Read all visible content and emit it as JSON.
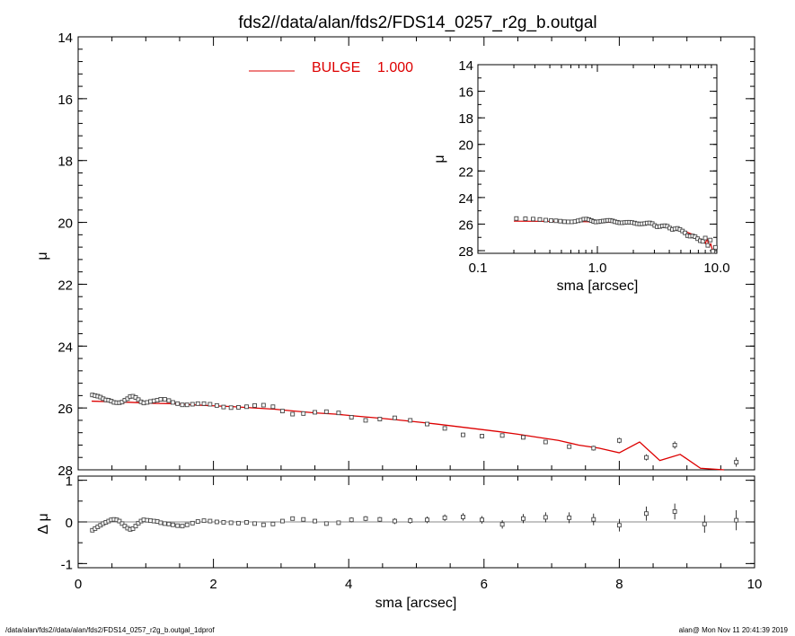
{
  "chart_data": [
    {
      "name": "main-profile",
      "type": "line",
      "title": "fds2//data/alan/fds2/FDS14_0257_r2g_b.outgal",
      "ylabel": "μ",
      "xlim": [
        0,
        10
      ],
      "ylim": [
        28,
        14
      ],
      "yticks": [
        "14",
        "16",
        "18",
        "20",
        "22",
        "24",
        "26",
        "28"
      ],
      "legend": {
        "label": "BULGE",
        "value": "1.000",
        "color": "#dd0000",
        "placement": "top-left"
      },
      "observed": {
        "sma": [
          0.21,
          0.25,
          0.29,
          0.33,
          0.37,
          0.41,
          0.45,
          0.49,
          0.53,
          0.57,
          0.61,
          0.65,
          0.69,
          0.73,
          0.77,
          0.81,
          0.85,
          0.89,
          0.93,
          0.97,
          1.02,
          1.07,
          1.12,
          1.17,
          1.22,
          1.28,
          1.34,
          1.4,
          1.47,
          1.54,
          1.61,
          1.69,
          1.77,
          1.86,
          1.95,
          2.05,
          2.15,
          2.26,
          2.37,
          2.49,
          2.61,
          2.74,
          2.88,
          3.02,
          3.17,
          3.33,
          3.5,
          3.67,
          3.85,
          4.04,
          4.25,
          4.46,
          4.68,
          4.91,
          5.16,
          5.42,
          5.69,
          5.97,
          6.27,
          6.58,
          6.91,
          7.26,
          7.62,
          8.0,
          8.4,
          8.82,
          9.26,
          9.73
        ],
        "mu": [
          25.58,
          25.6,
          25.62,
          25.65,
          25.7,
          25.74,
          25.75,
          25.78,
          25.82,
          25.83,
          25.83,
          25.81,
          25.75,
          25.7,
          25.63,
          25.62,
          25.66,
          25.73,
          25.8,
          25.84,
          25.82,
          25.79,
          25.77,
          25.75,
          25.72,
          25.72,
          25.76,
          25.82,
          25.86,
          25.9,
          25.9,
          25.88,
          25.86,
          25.86,
          25.88,
          25.92,
          25.97,
          25.99,
          25.98,
          25.96,
          25.92,
          25.91,
          25.96,
          26.1,
          26.2,
          26.18,
          26.14,
          26.12,
          26.16,
          26.3,
          26.4,
          26.36,
          26.32,
          26.4,
          26.52,
          26.66,
          26.87,
          26.91,
          26.89,
          26.95,
          27.1,
          27.25,
          27.3,
          27.05,
          27.6,
          27.2,
          28.05,
          27.75
        ],
        "err": [
          0.01,
          0.01,
          0.01,
          0.01,
          0.01,
          0.01,
          0.01,
          0.01,
          0.01,
          0.01,
          0.01,
          0.01,
          0.01,
          0.01,
          0.01,
          0.01,
          0.01,
          0.01,
          0.01,
          0.01,
          0.01,
          0.01,
          0.01,
          0.01,
          0.01,
          0.01,
          0.01,
          0.01,
          0.01,
          0.01,
          0.01,
          0.01,
          0.01,
          0.01,
          0.01,
          0.01,
          0.01,
          0.01,
          0.01,
          0.01,
          0.02,
          0.02,
          0.02,
          0.02,
          0.02,
          0.02,
          0.02,
          0.02,
          0.03,
          0.03,
          0.03,
          0.03,
          0.03,
          0.04,
          0.04,
          0.04,
          0.05,
          0.05,
          0.05,
          0.06,
          0.06,
          0.07,
          0.08,
          0.09,
          0.1,
          0.12,
          0.13,
          0.15
        ]
      },
      "model": {
        "sma": [
          0.2,
          0.5,
          0.8,
          1.1,
          1.4,
          1.7,
          2.0,
          2.3,
          2.6,
          2.9,
          3.2,
          3.5,
          3.8,
          4.1,
          4.4,
          4.7,
          5.0,
          5.3,
          5.6,
          5.9,
          6.2,
          6.5,
          6.8,
          7.1,
          7.4,
          7.7,
          8.0,
          8.3,
          8.6,
          8.9,
          9.2,
          9.55
        ],
        "mu": [
          25.78,
          25.8,
          25.82,
          25.85,
          25.86,
          25.9,
          25.93,
          25.96,
          26.0,
          26.04,
          26.1,
          26.16,
          26.2,
          26.26,
          26.32,
          26.38,
          26.45,
          26.52,
          26.6,
          26.68,
          26.76,
          26.85,
          26.95,
          27.05,
          27.2,
          27.3,
          27.45,
          27.1,
          27.7,
          27.5,
          27.95,
          28.3
        ]
      }
    },
    {
      "name": "inset-profile",
      "type": "line",
      "xscale": "log",
      "xlabel": "sma [arcsec]",
      "ylabel": "μ",
      "xlim": [
        0.1,
        10.0
      ],
      "ylim": [
        28.2,
        14
      ],
      "xticks": [
        "0.1",
        "1.0",
        "10.0"
      ],
      "yticks": [
        "14",
        "16",
        "18",
        "20",
        "22",
        "24",
        "26",
        "28"
      ]
    },
    {
      "name": "residuals",
      "type": "scatter",
      "xlabel": "sma [arcsec]",
      "ylabel": "Δ μ",
      "xlim": [
        0,
        10
      ],
      "ylim": [
        -1.1,
        1.1
      ],
      "xticks": [
        "0",
        "2",
        "4",
        "6",
        "8",
        "10"
      ],
      "yticks": [
        "1",
        "0",
        "-1"
      ],
      "sma": [
        0.21,
        0.25,
        0.29,
        0.33,
        0.37,
        0.41,
        0.45,
        0.49,
        0.53,
        0.57,
        0.61,
        0.65,
        0.69,
        0.73,
        0.77,
        0.81,
        0.85,
        0.89,
        0.93,
        0.97,
        1.02,
        1.07,
        1.12,
        1.17,
        1.22,
        1.28,
        1.34,
        1.4,
        1.47,
        1.54,
        1.61,
        1.69,
        1.77,
        1.86,
        1.95,
        2.05,
        2.15,
        2.26,
        2.37,
        2.49,
        2.61,
        2.74,
        2.88,
        3.02,
        3.17,
        3.33,
        3.5,
        3.67,
        3.85,
        4.04,
        4.25,
        4.46,
        4.68,
        4.91,
        5.16,
        5.42,
        5.69,
        5.97,
        6.27,
        6.58,
        6.91,
        7.26,
        7.62,
        8.0,
        8.4,
        8.82,
        9.26,
        9.73
      ],
      "dmu": [
        -0.2,
        -0.16,
        -0.12,
        -0.08,
        -0.04,
        -0.01,
        0.02,
        0.05,
        0.06,
        0.05,
        0.02,
        -0.04,
        -0.1,
        -0.15,
        -0.18,
        -0.16,
        -0.1,
        -0.03,
        0.02,
        0.05,
        0.04,
        0.03,
        0.02,
        0.01,
        -0.02,
        -0.04,
        -0.05,
        -0.07,
        -0.09,
        -0.1,
        -0.07,
        -0.03,
        0.01,
        0.03,
        0.02,
        0.0,
        -0.01,
        -0.02,
        -0.03,
        -0.01,
        -0.04,
        -0.07,
        -0.05,
        0.02,
        0.08,
        0.06,
        0.02,
        -0.04,
        -0.02,
        0.05,
        0.08,
        0.06,
        0.02,
        0.03,
        0.05,
        0.1,
        0.12,
        0.05,
        -0.06,
        0.08,
        0.11,
        0.1,
        0.06,
        -0.08,
        0.2,
        0.25,
        -0.05,
        0.04
      ],
      "err": [
        0.02,
        0.02,
        0.02,
        0.02,
        0.02,
        0.02,
        0.02,
        0.02,
        0.02,
        0.02,
        0.02,
        0.02,
        0.02,
        0.02,
        0.02,
        0.02,
        0.02,
        0.02,
        0.02,
        0.02,
        0.02,
        0.02,
        0.02,
        0.02,
        0.02,
        0.02,
        0.02,
        0.02,
        0.02,
        0.02,
        0.02,
        0.02,
        0.02,
        0.03,
        0.03,
        0.03,
        0.03,
        0.03,
        0.03,
        0.03,
        0.03,
        0.04,
        0.04,
        0.04,
        0.04,
        0.04,
        0.05,
        0.05,
        0.05,
        0.06,
        0.06,
        0.06,
        0.07,
        0.07,
        0.08,
        0.08,
        0.09,
        0.09,
        0.1,
        0.11,
        0.12,
        0.13,
        0.14,
        0.15,
        0.17,
        0.19,
        0.21,
        0.24
      ]
    }
  ],
  "footer": {
    "left": "/data/alan/fds2//data/alan/fds2/FDS14_0257_r2g_b.outgal_1dprof",
    "right": "alan@  Mon Nov 11 20:41:39 2019"
  }
}
